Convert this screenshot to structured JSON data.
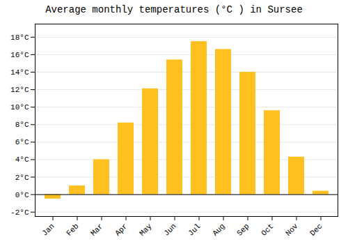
{
  "chart_data": {
    "type": "bar",
    "title": "Average monthly temperatures (°C ) in Sursee",
    "categories": [
      "Jan",
      "Feb",
      "Mar",
      "Apr",
      "May",
      "Jun",
      "Jul",
      "Aug",
      "Sep",
      "Oct",
      "Nov",
      "Dec"
    ],
    "values": [
      -0.5,
      1.0,
      4.0,
      8.2,
      12.1,
      15.4,
      17.5,
      16.6,
      14.0,
      9.6,
      4.3,
      0.4
    ],
    "color": "#FFC020",
    "ylim": [
      -2.5,
      19.5
    ],
    "yticks": [
      {
        "value": -2,
        "label": "-2°C"
      },
      {
        "value": 0,
        "label": "0°C"
      },
      {
        "value": 2,
        "label": "2°C"
      },
      {
        "value": 4,
        "label": "4°C"
      },
      {
        "value": 6,
        "label": "6°C"
      },
      {
        "value": 8,
        "label": "8°C"
      },
      {
        "value": 10,
        "label": "10°C"
      },
      {
        "value": 12,
        "label": "12°C"
      },
      {
        "value": 14,
        "label": "14°C"
      },
      {
        "value": 16,
        "label": "16°C"
      },
      {
        "value": 18,
        "label": "18°C"
      }
    ],
    "grid": true
  }
}
